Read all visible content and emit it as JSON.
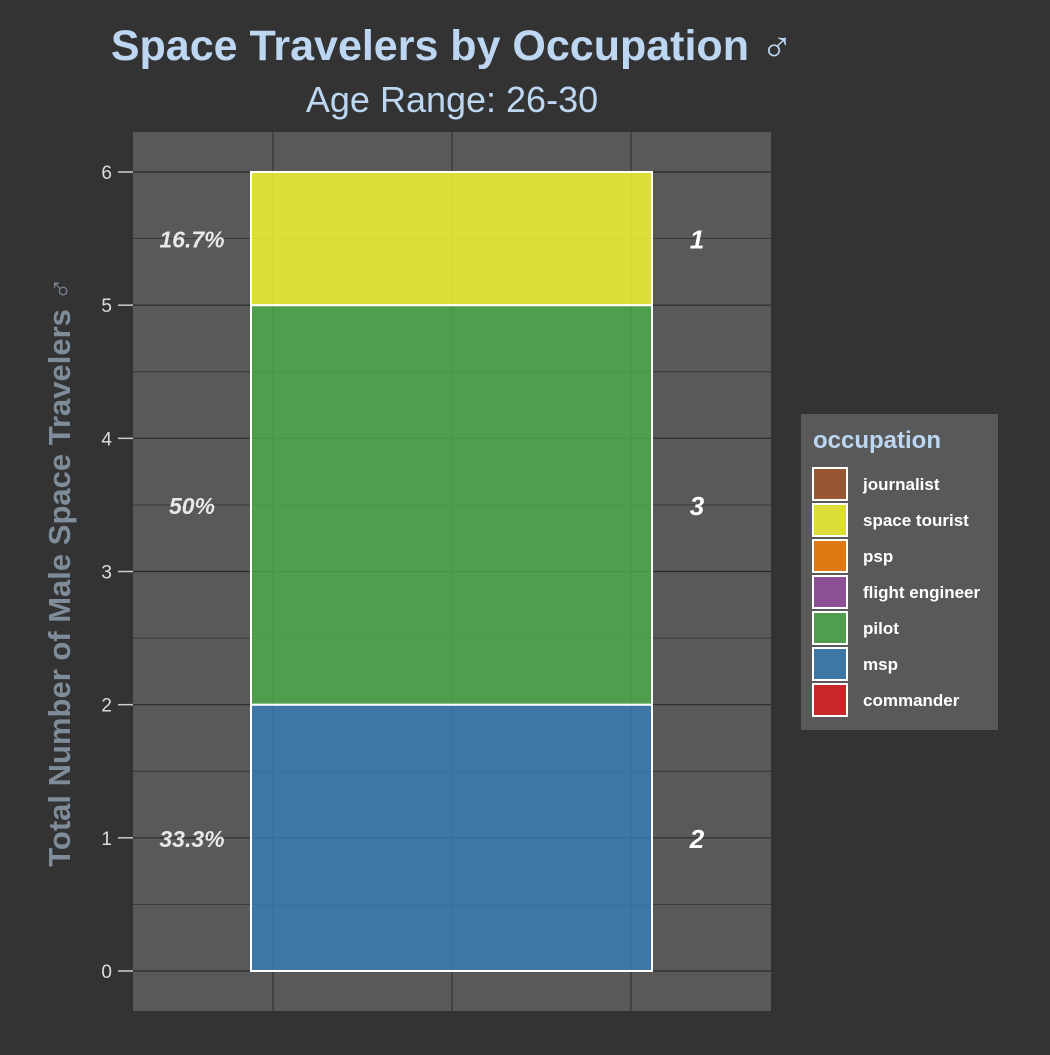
{
  "chart_data": {
    "type": "bar",
    "stacked": true,
    "title": "Space Travelers by Occupation ♂",
    "subtitle": "Age Range: 26-30",
    "xlabel": "",
    "ylabel": "Total Number of Male Space Travelers ♂",
    "ylim": [
      0,
      6
    ],
    "yticks": [
      0,
      1,
      2,
      3,
      4,
      5,
      6
    ],
    "grid": true,
    "legend": {
      "title": "occupation",
      "position": "right",
      "entries": [
        {
          "name": "journalist",
          "color": "#a65628"
        },
        {
          "name": "space tourist",
          "color": "#ffff33"
        },
        {
          "name": "psp",
          "color": "#ff7f00"
        },
        {
          "name": "flight engineer",
          "color": "#984ea3"
        },
        {
          "name": "pilot",
          "color": "#4daf4a"
        },
        {
          "name": "msp",
          "color": "#377eb8"
        },
        {
          "name": "commander",
          "color": "#e41a1c"
        }
      ]
    },
    "series": [
      {
        "name": "msp",
        "value": 2,
        "percent_label": "33.3%",
        "count_label": "2",
        "color": "#377eb8"
      },
      {
        "name": "pilot",
        "value": 3,
        "percent_label": "50%",
        "count_label": "3",
        "color": "#4daf4a"
      },
      {
        "name": "space tourist",
        "value": 1,
        "percent_label": "16.7%",
        "count_label": "1",
        "color": "#ffff33"
      }
    ]
  },
  "colors": {
    "background": "#333333",
    "panel": "#595959",
    "title": "#bdd7f2",
    "axis_label": "#7f8c99",
    "tick_label": "#dddddd",
    "legend_bg": "#595959"
  }
}
